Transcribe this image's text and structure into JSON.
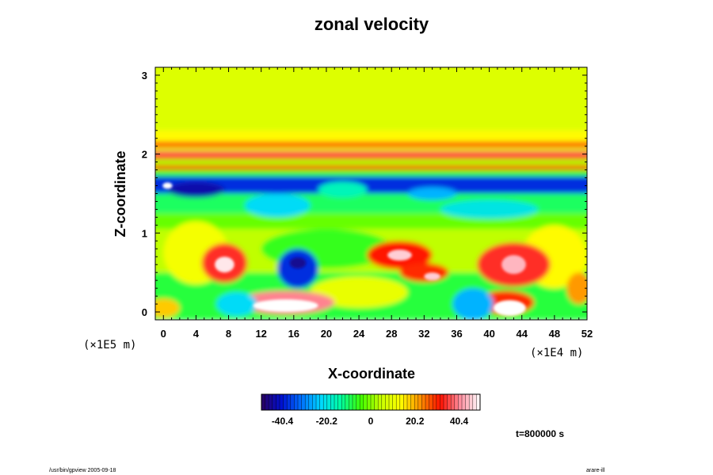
{
  "chart_data": {
    "type": "heatmap",
    "title": "zonal velocity",
    "xlabel": "X-coordinate",
    "ylabel": "Z-coordinate",
    "x_multiplier": "(×1E4 m)",
    "y_multiplier": "(×1E5 m)",
    "x_ticks": [
      "0",
      "4",
      "8",
      "12",
      "16",
      "20",
      "24",
      "28",
      "32",
      "36",
      "40",
      "44",
      "48",
      "52"
    ],
    "y_ticks": [
      "0",
      "1",
      "2",
      "3"
    ],
    "xlim": [
      -1,
      52
    ],
    "ylim": [
      -0.1,
      3.1
    ],
    "colorbar": {
      "min": -50,
      "max": 50,
      "ticks": [
        "-40.4",
        "-20.2",
        "0",
        "20.2",
        "40.4"
      ],
      "tick_values": [
        -40.4,
        -20.2,
        0,
        20.2,
        40.4
      ],
      "colormap": [
        "#2a0060",
        "#0010d0",
        "#0070ff",
        "#00d8ff",
        "#00ffa0",
        "#40ff00",
        "#c8ff00",
        "#ffff00",
        "#ff9000",
        "#ff1000",
        "#ff90a0",
        "#ffffff"
      ]
    },
    "time_label": "t=800000 s",
    "field_description": [
      {
        "region": "upper layer z 2.3-3.1",
        "value": 8
      },
      {
        "region": "band z 2.1",
        "value": 28
      },
      {
        "region": "band z 2.0",
        "value": 36
      },
      {
        "region": "band z 1.9",
        "value": 26
      },
      {
        "region": "band z 1.75",
        "value": -6
      },
      {
        "region": "jet z 1.55-1.65",
        "value": -38
      },
      {
        "region": "hot spot x 42-44 z 0.6",
        "value": 42
      },
      {
        "region": "hot spot x 27-30 z 0.75",
        "value": 38
      },
      {
        "region": "hot spot x 7-8 z 0.6",
        "value": 44
      },
      {
        "region": "hot spot x 12-18 z 0.05",
        "value": 50
      },
      {
        "region": "hot spot x 42 z 0.05",
        "value": 50
      },
      {
        "region": "cold spot x 16 z 0.55",
        "value": -40
      }
    ]
  },
  "footer": {
    "left": "/usr/bin/gpview 2005-09-18",
    "right": "arare-ill"
  }
}
